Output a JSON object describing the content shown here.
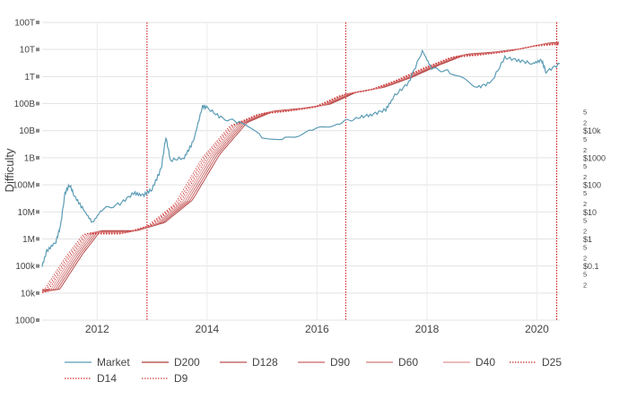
{
  "chart_data": {
    "type": "line",
    "ylabel": "Difficulty",
    "y_scale": "log",
    "ylim": [
      "1000",
      "100T"
    ],
    "y_ticks": [
      "1000",
      "10k",
      "100k",
      "1M",
      "10M",
      "100M",
      "1B",
      "10B",
      "100B",
      "1T",
      "10T",
      "100T"
    ],
    "y2_scale": "log",
    "y2_major_ticks": [
      "$0.1",
      "$1",
      "$10",
      "$100",
      "$1000",
      "$10k"
    ],
    "y2_minor_tick_labels": [
      "2",
      "5"
    ],
    "x_ticks": [
      "2012",
      "2014",
      "2016",
      "2018",
      "2020"
    ],
    "xlim": [
      "2011-01",
      "2020-06"
    ],
    "halving_lines": [
      "2012-11-28",
      "2016-07-09",
      "2020-05-11"
    ],
    "series": [
      {
        "name": "Market",
        "color": "#5b9cb5",
        "style": "solid",
        "points": [
          [
            "2011-01",
            "100k"
          ],
          [
            "2011-02",
            "350k"
          ],
          [
            "2011-04",
            "800k"
          ],
          [
            "2011-05",
            "3M"
          ],
          [
            "2011-06",
            "50M"
          ],
          [
            "2011-07",
            "100M"
          ],
          [
            "2011-08",
            "40M"
          ],
          [
            "2011-10",
            "12M"
          ],
          [
            "2011-12",
            "4M"
          ],
          [
            "2012-02",
            "12M"
          ],
          [
            "2012-06",
            "20M"
          ],
          [
            "2012-09",
            "50M"
          ],
          [
            "2012-11",
            "40M"
          ],
          [
            "2013-01",
            "70M"
          ],
          [
            "2013-03",
            "400M"
          ],
          [
            "2013-04",
            "6B"
          ],
          [
            "2013-05",
            "800M"
          ],
          [
            "2013-08",
            "1B"
          ],
          [
            "2013-10",
            "4B"
          ],
          [
            "2013-12",
            "80B"
          ],
          [
            "2014-01",
            "70B"
          ],
          [
            "2014-04",
            "30B"
          ],
          [
            "2014-08",
            "20B"
          ],
          [
            "2015-01",
            "6B"
          ],
          [
            "2015-06",
            "5B"
          ],
          [
            "2015-12",
            "10B"
          ],
          [
            "2016-06",
            "20B"
          ],
          [
            "2016-10",
            "30B"
          ],
          [
            "2017-01",
            "40B"
          ],
          [
            "2017-04",
            "60B"
          ],
          [
            "2017-06",
            "200B"
          ],
          [
            "2017-09",
            "600B"
          ],
          [
            "2017-12",
            "9T"
          ],
          [
            "2018-02",
            "2T"
          ],
          [
            "2018-06",
            "1.5T"
          ],
          [
            "2018-12",
            "400B"
          ],
          [
            "2019-03",
            "600B"
          ],
          [
            "2019-06",
            "5T"
          ],
          [
            "2019-09",
            "4T"
          ],
          [
            "2019-12",
            "3T"
          ],
          [
            "2020-02",
            "4T"
          ],
          [
            "2020-03",
            "1.5T"
          ],
          [
            "2020-06",
            "3T"
          ]
        ]
      },
      {
        "name": "D200",
        "color": "#b03a3a",
        "style": "solid"
      },
      {
        "name": "D128",
        "color": "#bd4f4f",
        "style": "solid"
      },
      {
        "name": "D90",
        "color": "#c96565",
        "style": "solid"
      },
      {
        "name": "D60",
        "color": "#d47b7b",
        "style": "solid"
      },
      {
        "name": "D40",
        "color": "#df9393",
        "style": "solid"
      },
      {
        "name": "D25",
        "color": "#cc2b2b",
        "style": "dotted"
      },
      {
        "name": "D14",
        "color": "#cc2b2b",
        "style": "dotted"
      },
      {
        "name": "D9",
        "color": "#d04545",
        "style": "dotted"
      }
    ],
    "legend_position": "bottom",
    "grid": true
  }
}
